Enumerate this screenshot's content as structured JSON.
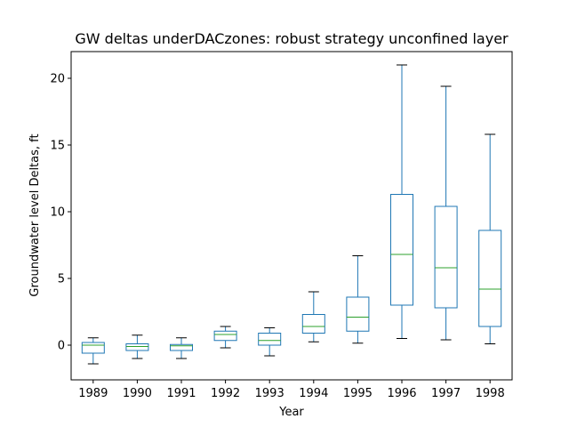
{
  "chart_data": {
    "type": "box",
    "title": "GW deltas underDACzones: robust strategy unconfined layer",
    "xlabel": "Year",
    "ylabel": "Groundwater level Deltas, ft",
    "ylim": [
      -2.6,
      22.0
    ],
    "yticks": [
      0,
      5,
      10,
      15,
      20
    ],
    "grid": false,
    "legend": "none",
    "colors": {
      "box": "#1f77b4",
      "median": "#2ca02c",
      "whisker": "#000000",
      "axes": "#000000"
    },
    "categories": [
      "1989",
      "1990",
      "1991",
      "1992",
      "1993",
      "1994",
      "1995",
      "1996",
      "1997",
      "1998"
    ],
    "boxes": [
      {
        "label": "1989",
        "whislo": -1.4,
        "q1": -0.6,
        "med": 0.0,
        "q3": 0.2,
        "whishi": 0.55
      },
      {
        "label": "1990",
        "whislo": -1.0,
        "q1": -0.4,
        "med": -0.1,
        "q3": 0.1,
        "whishi": 0.75
      },
      {
        "label": "1991",
        "whislo": -1.0,
        "q1": -0.4,
        "med": -0.05,
        "q3": 0.05,
        "whishi": 0.55
      },
      {
        "label": "1992",
        "whislo": -0.2,
        "q1": 0.35,
        "med": 0.8,
        "q3": 1.05,
        "whishi": 1.4
      },
      {
        "label": "1993",
        "whislo": -0.8,
        "q1": 0.0,
        "med": 0.35,
        "q3": 0.9,
        "whishi": 1.3
      },
      {
        "label": "1994",
        "whislo": 0.25,
        "q1": 0.9,
        "med": 1.4,
        "q3": 2.3,
        "whishi": 4.0
      },
      {
        "label": "1995",
        "whislo": 0.15,
        "q1": 1.05,
        "med": 2.1,
        "q3": 3.6,
        "whishi": 6.7
      },
      {
        "label": "1996",
        "whislo": 0.5,
        "q1": 3.0,
        "med": 6.8,
        "q3": 11.3,
        "whishi": 21.0
      },
      {
        "label": "1997",
        "whislo": 0.4,
        "q1": 2.8,
        "med": 5.8,
        "q3": 10.4,
        "whishi": 19.4
      },
      {
        "label": "1998",
        "whislo": 0.1,
        "q1": 1.4,
        "med": 4.2,
        "q3": 8.6,
        "whishi": 15.8
      }
    ]
  }
}
